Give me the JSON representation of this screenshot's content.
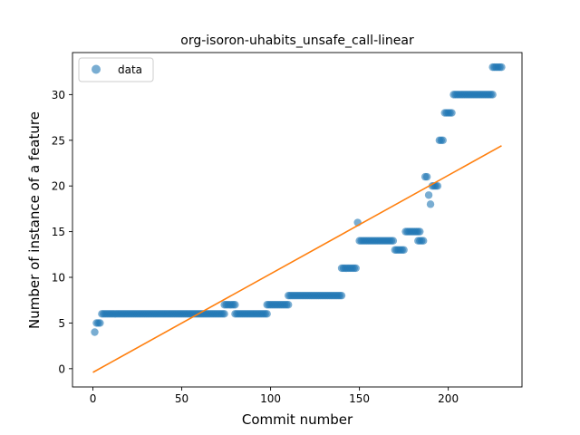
{
  "chart_data": {
    "type": "scatter",
    "title": "org-isoron-uhabits_unsafe_call-linear",
    "xlabel": "Commit number",
    "ylabel": "Number of instance of a feature",
    "xlim": [
      -11.5,
      241.5
    ],
    "ylim": [
      -2.0,
      34.6
    ],
    "xticks": [
      0,
      50,
      100,
      150,
      200
    ],
    "yticks": [
      0,
      5,
      10,
      15,
      20,
      25,
      30
    ],
    "xtick_labels": [
      "0",
      "50",
      "100",
      "150",
      "200"
    ],
    "ytick_labels": [
      "0",
      "5",
      "10",
      "15",
      "20",
      "25",
      "30"
    ],
    "grid": false,
    "legend": {
      "position": "top-left",
      "entries": [
        "data"
      ]
    },
    "colors": {
      "scatter": "#1f77b4",
      "fit_line": "#ff7f0e"
    },
    "series": [
      {
        "name": "data",
        "kind": "scatter",
        "segments": [
          {
            "x_start": 1,
            "x_end": 1,
            "y": 4
          },
          {
            "x_start": 2,
            "x_end": 4,
            "y": 5
          },
          {
            "x_start": 5,
            "x_end": 74,
            "y": 6
          },
          {
            "x_start": 74,
            "x_end": 80,
            "y": 7
          },
          {
            "x_start": 80,
            "x_end": 98,
            "y": 6
          },
          {
            "x_start": 98,
            "x_end": 110,
            "y": 7
          },
          {
            "x_start": 110,
            "x_end": 140,
            "y": 8
          },
          {
            "x_start": 140,
            "x_end": 148,
            "y": 11
          },
          {
            "x_start": 149,
            "x_end": 149,
            "y": 16
          },
          {
            "x_start": 150,
            "x_end": 169,
            "y": 14
          },
          {
            "x_start": 170,
            "x_end": 175,
            "y": 13
          },
          {
            "x_start": 176,
            "x_end": 184,
            "y": 15
          },
          {
            "x_start": 183,
            "x_end": 186,
            "y": 14
          },
          {
            "x_start": 187,
            "x_end": 188,
            "y": 21
          },
          {
            "x_start": 189,
            "x_end": 189,
            "y": 19
          },
          {
            "x_start": 190,
            "x_end": 190,
            "y": 18
          },
          {
            "x_start": 191,
            "x_end": 194,
            "y": 20
          },
          {
            "x_start": 195,
            "x_end": 197,
            "y": 25
          },
          {
            "x_start": 198,
            "x_end": 202,
            "y": 28
          },
          {
            "x_start": 203,
            "x_end": 225,
            "y": 30
          },
          {
            "x_start": 225,
            "x_end": 230,
            "y": 33
          }
        ]
      },
      {
        "kind": "line",
        "points": [
          [
            0,
            -0.4
          ],
          [
            230,
            24.4
          ]
        ]
      }
    ]
  }
}
